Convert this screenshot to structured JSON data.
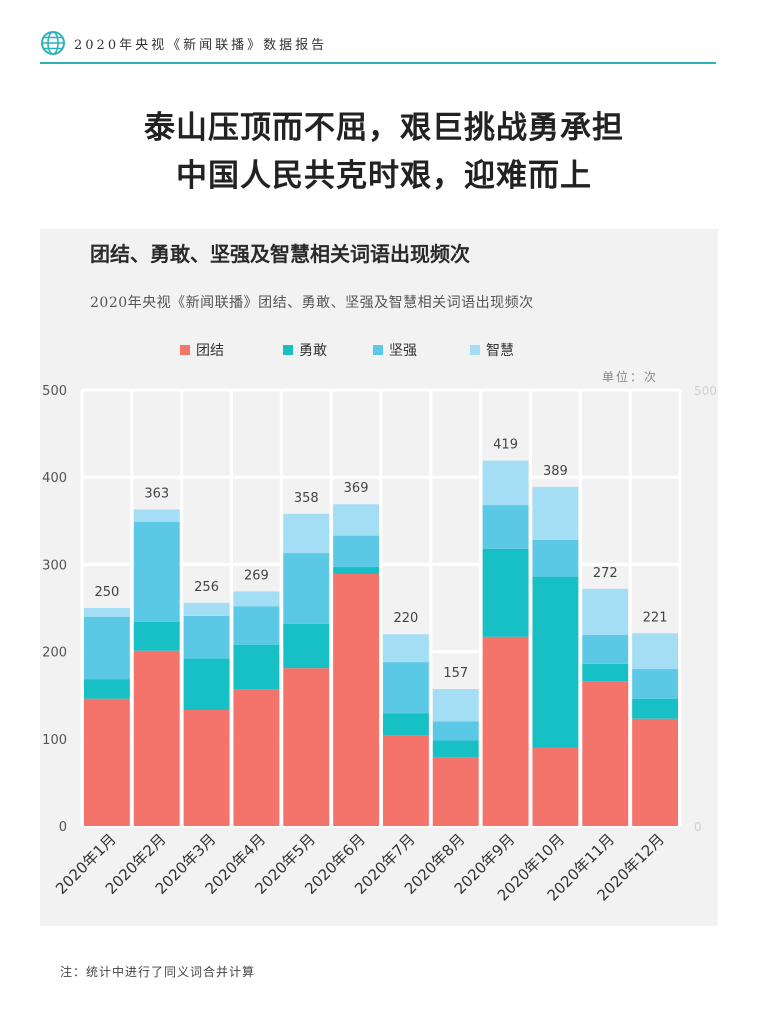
{
  "header": {
    "report_title": "2020年央视《新闻联播》数据报告",
    "accent_color": "#2bb3b8",
    "icon": "globe-icon"
  },
  "headline": {
    "line1": "泰山压顶而不屈，艰巨挑战勇承担",
    "line2": "中国人民共克时艰，迎难而上"
  },
  "unit_label": "单位：次",
  "footnote": "注：统计中进行了同义词合并计算",
  "chart_data": {
    "type": "bar",
    "stacked": true,
    "title": "团结、勇敢、坚强及智慧相关词语出现频次",
    "subtitle": "2020年央视《新闻联播》团结、勇敢、坚强及智慧相关词语出现频次",
    "categories": [
      "2020年1月",
      "2020年2月",
      "2020年3月",
      "2020年4月",
      "2020年5月",
      "2020年6月",
      "2020年7月",
      "2020年8月",
      "2020年9月",
      "2020年10月",
      "2020年11月",
      "2020年12月"
    ],
    "series": [
      {
        "name": "团结",
        "color": "#f4736b",
        "values": [
          146,
          201,
          133,
          157,
          181,
          289,
          104,
          79,
          217,
          90,
          166,
          123
        ]
      },
      {
        "name": "勇敢",
        "color": "#17c0c4",
        "values": [
          22,
          33,
          59,
          51,
          51,
          8,
          25,
          19,
          101,
          196,
          20,
          23
        ]
      },
      {
        "name": "坚强",
        "color": "#5bc9e6",
        "values": [
          72,
          115,
          49,
          44,
          81,
          36,
          59,
          22,
          50,
          42,
          33,
          34
        ]
      },
      {
        "name": "智慧",
        "color": "#a3def5",
        "values": [
          10,
          14,
          15,
          17,
          45,
          36,
          32,
          37,
          51,
          61,
          53,
          41
        ]
      }
    ],
    "totals": [
      250,
      363,
      256,
      269,
      358,
      369,
      220,
      157,
      419,
      389,
      272,
      221
    ],
    "ylim": [
      0,
      500
    ],
    "yticks": [
      0,
      100,
      200,
      300,
      400,
      500
    ],
    "secondary_ylim": [
      0,
      500
    ],
    "secondary_yticks": [
      0,
      500
    ],
    "grid": true,
    "legend_position": "top"
  }
}
